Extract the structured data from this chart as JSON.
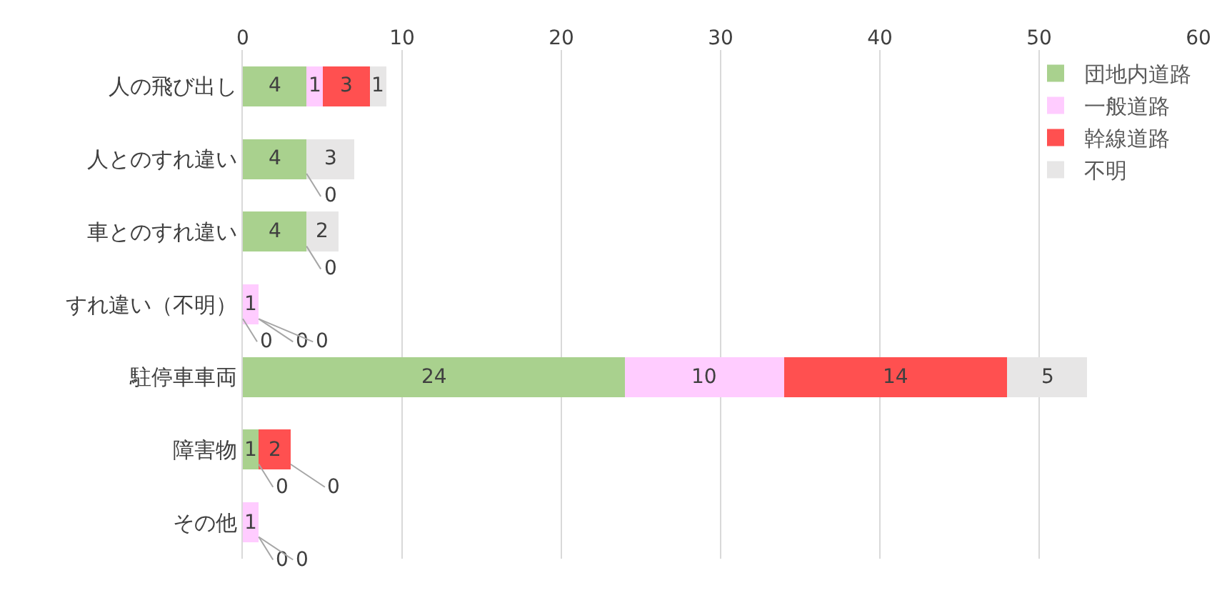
{
  "chart_data": {
    "type": "bar",
    "orientation": "horizontal",
    "stacked": true,
    "categories": [
      "人の飛び出し",
      "人とのすれ違い",
      "車とのすれ違い",
      "すれ違い（不明）",
      "駐停車車両",
      "障害物",
      "その他"
    ],
    "series": [
      {
        "name": "団地内道路",
        "color": "#a9d18e",
        "values": [
          4,
          4,
          4,
          0,
          24,
          1,
          0
        ],
        "value_labels": [
          "4",
          "4",
          "4",
          "0",
          "24",
          "1",
          null
        ]
      },
      {
        "name": "一般道路",
        "color": "#ffccff",
        "values": [
          1,
          0,
          0,
          1,
          10,
          0,
          1
        ],
        "value_labels": [
          "1",
          "0",
          "0",
          "1",
          "10",
          "0",
          "1"
        ]
      },
      {
        "name": "幹線道路",
        "color": "#ff5050",
        "values": [
          3,
          0,
          0,
          0,
          14,
          2,
          0
        ],
        "value_labels": [
          "3",
          null,
          null,
          "0",
          "14",
          "2",
          "0"
        ]
      },
      {
        "name": "不明",
        "color": "#e7e6e6",
        "values": [
          1,
          3,
          2,
          0,
          5,
          0,
          0
        ],
        "value_labels": [
          "1",
          "3",
          "2",
          "0",
          "5",
          "0",
          "0"
        ]
      }
    ],
    "xlim": [
      0,
      60
    ],
    "xticks": [
      0,
      10,
      20,
      30,
      40,
      50,
      60
    ],
    "grid": "x",
    "legend": "top right"
  }
}
